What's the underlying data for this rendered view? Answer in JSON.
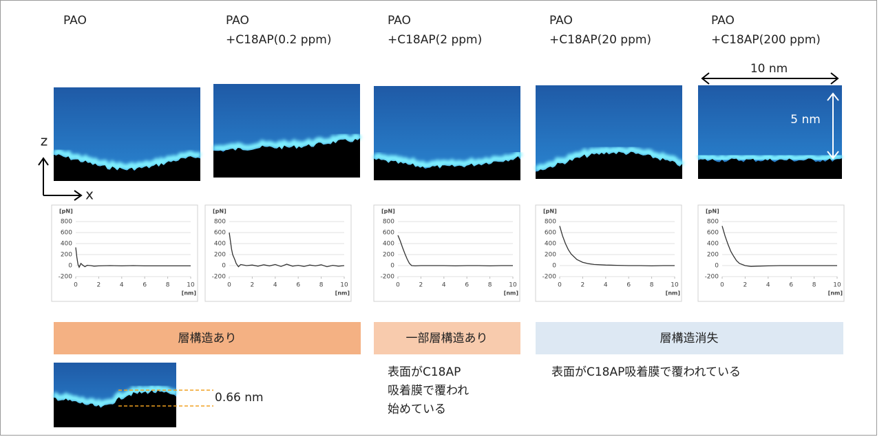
{
  "chart_data": [
    {
      "type": "line",
      "title": [
        "PAO"
      ],
      "y_unit": "[pN]",
      "x_unit": "[nm]",
      "color": "#333333",
      "grid": true,
      "xlim": [
        0,
        10
      ],
      "xticks": [
        0,
        2,
        4,
        6,
        8,
        10
      ],
      "ylim": [
        -200,
        800
      ],
      "yticks": [
        -200,
        0,
        200,
        400,
        600,
        800
      ],
      "x": [
        0,
        0.1,
        0.2,
        0.3,
        0.45,
        0.6,
        0.8,
        1,
        1.3,
        1.6,
        2,
        3,
        4,
        5,
        6,
        7,
        8,
        9,
        10
      ],
      "values": [
        330,
        150,
        20,
        -30,
        40,
        10,
        -20,
        5,
        0,
        -10,
        -5,
        0,
        -5,
        0,
        -5,
        -5,
        -5,
        -5,
        -5
      ]
    },
    {
      "type": "line",
      "title": [
        "PAO",
        "+C18AP(0.2 ppm)"
      ],
      "y_unit": "[pN]",
      "x_unit": "[nm]",
      "color": "#333333",
      "grid": true,
      "xlim": [
        0,
        10
      ],
      "xticks": [
        0,
        2,
        4,
        6,
        8,
        10
      ],
      "ylim": [
        -200,
        800
      ],
      "yticks": [
        -200,
        0,
        200,
        400,
        600,
        800
      ],
      "x": [
        0,
        0.1,
        0.2,
        0.3,
        0.4,
        0.5,
        0.6,
        0.8,
        1,
        1.5,
        2,
        2.5,
        3,
        3.5,
        4,
        4.5,
        5,
        5.5,
        6,
        6.5,
        7,
        7.5,
        8,
        8.5,
        9,
        9.5,
        10
      ],
      "values": [
        600,
        450,
        300,
        200,
        150,
        100,
        40,
        -20,
        20,
        0,
        10,
        -10,
        15,
        -5,
        20,
        -15,
        25,
        -10,
        5,
        -15,
        10,
        -5,
        15,
        -20,
        5,
        -10,
        0
      ]
    },
    {
      "type": "line",
      "title": [
        "PAO",
        "+C18AP(2 ppm)"
      ],
      "y_unit": "[pN]",
      "x_unit": "[nm]",
      "color": "#333333",
      "grid": true,
      "xlim": [
        0,
        10
      ],
      "xticks": [
        0,
        2,
        4,
        6,
        8,
        10
      ],
      "ylim": [
        -200,
        800
      ],
      "yticks": [
        -200,
        0,
        200,
        400,
        600,
        800
      ],
      "x": [
        0,
        0.2,
        0.4,
        0.6,
        0.8,
        1,
        1.2,
        1.5,
        2,
        3,
        4,
        5,
        6,
        7,
        8,
        9,
        10
      ],
      "values": [
        550,
        450,
        330,
        220,
        120,
        40,
        0,
        -5,
        0,
        0,
        0,
        -5,
        0,
        0,
        -5,
        0,
        0
      ]
    },
    {
      "type": "line",
      "title": [
        "PAO",
        "+C18AP(20 ppm)"
      ],
      "y_unit": "[pN]",
      "x_unit": "[nm]",
      "color": "#333333",
      "grid": true,
      "xlim": [
        0,
        10
      ],
      "xticks": [
        0,
        2,
        4,
        6,
        8,
        10
      ],
      "ylim": [
        -200,
        800
      ],
      "yticks": [
        -200,
        0,
        200,
        400,
        600,
        800
      ],
      "x": [
        0,
        0.25,
        0.5,
        0.75,
        1,
        1.5,
        2,
        2.5,
        3,
        4,
        5,
        6,
        7,
        8,
        9,
        10
      ],
      "values": [
        720,
        540,
        400,
        290,
        210,
        110,
        60,
        35,
        20,
        10,
        5,
        0,
        0,
        -5,
        0,
        0
      ]
    },
    {
      "type": "line",
      "title": [
        "PAO",
        "+C18AP(200 ppm)"
      ],
      "y_unit": "[pN]",
      "x_unit": "[nm]",
      "color": "#333333",
      "grid": true,
      "xlim": [
        0,
        10
      ],
      "xticks": [
        0,
        2,
        4,
        6,
        8,
        10
      ],
      "ylim": [
        -200,
        800
      ],
      "yticks": [
        -200,
        0,
        200,
        400,
        600,
        800
      ],
      "x": [
        0,
        0.25,
        0.5,
        0.75,
        1,
        1.25,
        1.5,
        2,
        2.5,
        3,
        4,
        5,
        6,
        7,
        8,
        9,
        10
      ],
      "values": [
        720,
        540,
        390,
        260,
        170,
        90,
        40,
        0,
        -15,
        -10,
        -5,
        0,
        0,
        0,
        0,
        0,
        0
      ]
    }
  ],
  "scale": {
    "width": "10 nm",
    "height": "5 nm",
    "z_axis": "z",
    "x_axis": "x"
  },
  "bands": [
    {
      "label": "層構造あり",
      "note": []
    },
    {
      "label": "一部層構造あり",
      "note": [
        "表面がC18AP",
        "吸着膜で覆われ",
        "始めている"
      ]
    },
    {
      "label": "層構造消失",
      "note": [
        "表面がC18AP吸着膜で覆われている"
      ]
    }
  ],
  "inset": {
    "spacing": "0.66 nm"
  }
}
